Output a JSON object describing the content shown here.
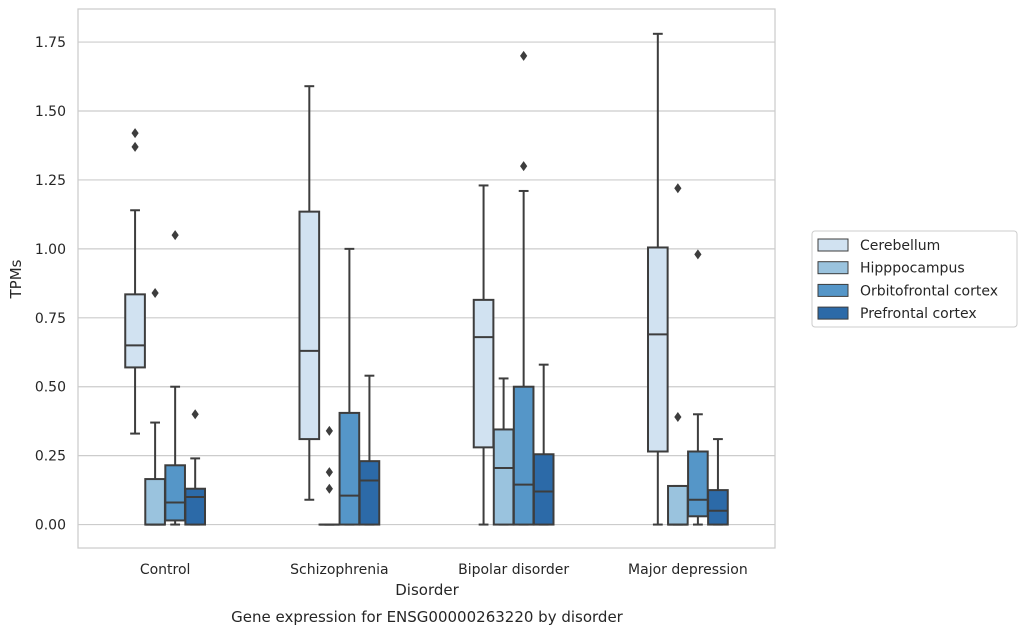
{
  "chart_data": {
    "type": "box",
    "title": "",
    "caption": "Gene expression for ENSG00000263220 by disorder",
    "xlabel": "Disorder",
    "ylabel": "TPMs",
    "ylim": [
      -0.085,
      1.87
    ],
    "yticks": [
      "0.00",
      "0.25",
      "0.50",
      "0.75",
      "1.00",
      "1.25",
      "1.50",
      "1.75"
    ],
    "ytick_values": [
      0,
      0.25,
      0.5,
      0.75,
      1.0,
      1.25,
      1.5,
      1.75
    ],
    "grid": true,
    "legend_position": "right",
    "categories": [
      "Control",
      "Schizophrenia",
      "Bipolar disorder",
      "Major depression"
    ],
    "series": [
      {
        "name": "Cerebellum",
        "color": "#d1e2f1",
        "boxes": [
          {
            "min": 0.33,
            "q1": 0.57,
            "median": 0.65,
            "q3": 0.835,
            "max": 1.14,
            "outliers": [
              1.37,
              1.42
            ]
          },
          {
            "min": 0.09,
            "q1": 0.31,
            "median": 0.63,
            "q3": 1.135,
            "max": 1.59,
            "outliers": []
          },
          {
            "min": 0.0,
            "q1": 0.28,
            "median": 0.68,
            "q3": 0.815,
            "max": 1.23,
            "outliers": []
          },
          {
            "min": 0.0,
            "q1": 0.265,
            "median": 0.69,
            "q3": 1.005,
            "max": 1.78,
            "outliers": []
          }
        ]
      },
      {
        "name": "Hipppocampus",
        "color": "#9ac3de",
        "boxes": [
          {
            "min": 0.0,
            "q1": 0.0,
            "median": 0.0,
            "q3": 0.165,
            "max": 0.37,
            "outliers": [
              0.84
            ]
          },
          {
            "min": 0.0,
            "q1": 0.0,
            "median": 0.0,
            "q3": 0.0,
            "max": 0.0,
            "outliers": [
              0.13,
              0.19,
              0.34
            ]
          },
          {
            "min": 0.0,
            "q1": 0.0,
            "median": 0.205,
            "q3": 0.345,
            "max": 0.53,
            "outliers": []
          },
          {
            "min": 0.0,
            "q1": 0.0,
            "median": 0.0,
            "q3": 0.14,
            "max": 0.14,
            "outliers": [
              0.39,
              1.22
            ]
          }
        ]
      },
      {
        "name": "Orbitofrontal cortex",
        "color": "#5596c8",
        "boxes": [
          {
            "min": 0.0,
            "q1": 0.015,
            "median": 0.08,
            "q3": 0.215,
            "max": 0.5,
            "outliers": [
              1.05
            ]
          },
          {
            "min": 0.0,
            "q1": 0.0,
            "median": 0.105,
            "q3": 0.405,
            "max": 1.0,
            "outliers": []
          },
          {
            "min": 0.0,
            "q1": 0.0,
            "median": 0.145,
            "q3": 0.5,
            "max": 1.21,
            "outliers": [
              1.3,
              1.7
            ]
          },
          {
            "min": 0.0,
            "q1": 0.03,
            "median": 0.09,
            "q3": 0.265,
            "max": 0.4,
            "outliers": [
              0.98
            ]
          }
        ]
      },
      {
        "name": "Prefrontal cortex",
        "color": "#2c6aa8",
        "boxes": [
          {
            "min": 0.0,
            "q1": 0.0,
            "median": 0.1,
            "q3": 0.13,
            "max": 0.24,
            "outliers": [
              0.4
            ]
          },
          {
            "min": 0.0,
            "q1": 0.0,
            "median": 0.16,
            "q3": 0.23,
            "max": 0.54,
            "outliers": []
          },
          {
            "min": 0.0,
            "q1": 0.0,
            "median": 0.12,
            "q3": 0.255,
            "max": 0.58,
            "outliers": []
          },
          {
            "min": 0.0,
            "q1": 0.0,
            "median": 0.05,
            "q3": 0.125,
            "max": 0.31,
            "outliers": []
          }
        ]
      }
    ]
  }
}
